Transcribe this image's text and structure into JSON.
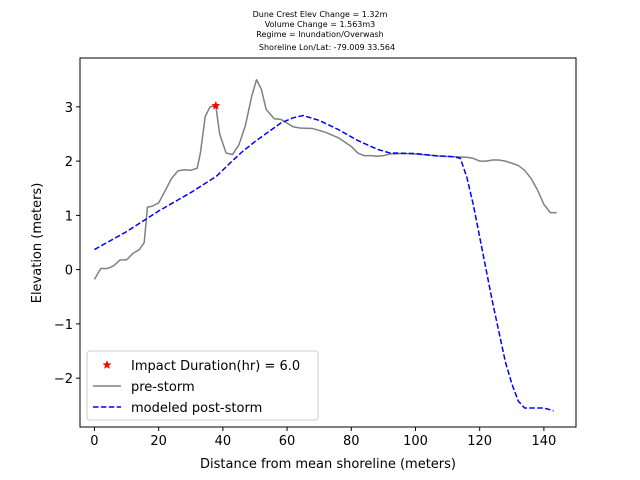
{
  "chart_data": {
    "type": "line",
    "title_lines": [
      "Dune Crest Elev Change = 1.32m",
      "Volume Change = 1.563m3",
      "Regime = Inundation/Overwash",
      "Shoreline Lon/Lat: -79.009 33.564"
    ],
    "xlabel": "Distance from mean shoreline (meters)",
    "ylabel": "Elevation (meters)",
    "xlim": [
      -4.5,
      150
    ],
    "ylim": [
      -2.9,
      3.9
    ],
    "xticks": [
      0,
      20,
      40,
      60,
      80,
      100,
      120,
      140
    ],
    "yticks": [
      -2,
      -1,
      0,
      1,
      2,
      3
    ],
    "grid": false,
    "legend_position": "lower-left",
    "marker": {
      "name": "Impact Duration(hr) = 6.0",
      "x": 37.8,
      "y": 3.02,
      "color": "#ff0000",
      "symbol": "star"
    },
    "series": [
      {
        "name": "pre-storm",
        "color": "#808080",
        "style": "solid",
        "x": [
          0,
          2,
          4,
          6,
          8,
          10,
          12,
          14,
          15.5,
          16.5,
          18,
          19,
          20,
          22,
          24,
          26,
          28,
          30,
          32,
          33,
          34.5,
          36,
          37.8,
          39,
          41,
          43,
          45,
          47,
          49,
          50.5,
          52,
          53.5,
          56,
          58,
          60,
          62,
          64,
          68,
          72,
          76,
          80,
          82,
          84,
          86,
          88,
          90,
          92,
          96,
          100,
          104,
          108,
          112,
          116,
          118,
          120,
          122,
          124,
          126,
          128,
          130,
          132,
          134,
          136,
          138,
          140,
          142,
          144
        ],
        "y": [
          -0.18,
          0.02,
          0.02,
          0.07,
          0.18,
          0.18,
          0.3,
          0.37,
          0.5,
          1.15,
          1.17,
          1.2,
          1.23,
          1.45,
          1.68,
          1.82,
          1.84,
          1.83,
          1.87,
          2.15,
          2.82,
          3.0,
          3.02,
          2.5,
          2.15,
          2.12,
          2.3,
          2.65,
          3.2,
          3.5,
          3.32,
          2.95,
          2.78,
          2.77,
          2.7,
          2.63,
          2.61,
          2.6,
          2.53,
          2.43,
          2.27,
          2.15,
          2.1,
          2.1,
          2.09,
          2.1,
          2.13,
          2.14,
          2.13,
          2.11,
          2.09,
          2.08,
          2.07,
          2.05,
          2.0,
          2.0,
          2.02,
          2.02,
          2.0,
          1.96,
          1.92,
          1.83,
          1.68,
          1.47,
          1.2,
          1.05,
          1.05
        ]
      },
      {
        "name": "modeled post-storm",
        "color": "#0000ff",
        "style": "dashed",
        "x": [
          0,
          10,
          20,
          30,
          38,
          42,
          46,
          50,
          54,
          58,
          62,
          65,
          70,
          76,
          82,
          88,
          92,
          100,
          106,
          112,
          114,
          116,
          118,
          120,
          122,
          124,
          126,
          128,
          130,
          132,
          134,
          136,
          140,
          143
        ],
        "y": [
          0.37,
          0.7,
          1.08,
          1.42,
          1.72,
          1.95,
          2.17,
          2.36,
          2.53,
          2.7,
          2.8,
          2.84,
          2.75,
          2.58,
          2.38,
          2.22,
          2.15,
          2.14,
          2.1,
          2.08,
          2.05,
          1.7,
          1.2,
          0.6,
          0.0,
          -0.6,
          -1.15,
          -1.7,
          -2.1,
          -2.42,
          -2.55,
          -2.55,
          -2.55,
          -2.6
        ]
      }
    ]
  }
}
